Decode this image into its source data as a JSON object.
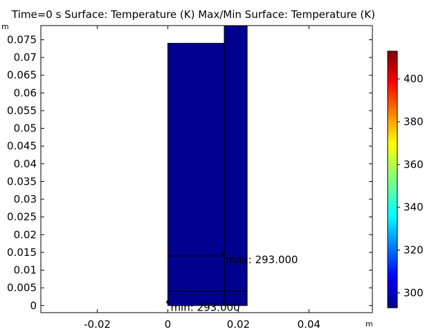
{
  "title": "Time=0 s  Surface: Temperature (K)  Max/Min Surface: Temperature (K)",
  "units": {
    "x": "m",
    "y": "m"
  },
  "colors": {
    "surface": "#00008f",
    "edge": "#000000",
    "background": "#ffffff"
  },
  "colorbar": {
    "min": 293,
    "max": 413,
    "ticks": [
      "300",
      "320",
      "340",
      "360",
      "380",
      "400"
    ],
    "colormap": "rainbow (blue-to-red)"
  },
  "chart_data": {
    "type": "heatmap",
    "title": "Time=0 s  Surface: Temperature (K)  Max/Min Surface: Temperature (K)",
    "xlabel": "m",
    "ylabel": "m",
    "xlim": [
      -0.036,
      0.058
    ],
    "ylim": [
      -0.002,
      0.079
    ],
    "x_ticks": [
      "-0.02",
      "0",
      "0.02",
      "0.04"
    ],
    "y_ticks": [
      "0",
      "0.005",
      "0.01",
      "0.015",
      "0.02",
      "0.025",
      "0.03",
      "0.035",
      "0.04",
      "0.045",
      "0.05",
      "0.055",
      "0.06",
      "0.065",
      "0.07",
      "0.075"
    ],
    "grid": false,
    "surface_temperature_K": 293,
    "domains": [
      {
        "x": [
          0,
          0.016
        ],
        "y": [
          0,
          0.074
        ]
      },
      {
        "x": [
          0.016,
          0.0225
        ],
        "y": [
          0,
          0.079
        ]
      }
    ],
    "boundary_lines": [
      {
        "x": [
          0,
          0.016
        ],
        "y": [
          0.014,
          0.014
        ]
      },
      {
        "x": [
          0,
          0.0225
        ],
        "y": [
          0.004,
          0.004
        ]
      }
    ],
    "annotations": [
      {
        "label": "max: 293.000",
        "x": 0.0156,
        "y": 0.0145
      },
      {
        "label": "min: 293.000",
        "x": 0.0,
        "y": 0.001
      }
    ]
  }
}
